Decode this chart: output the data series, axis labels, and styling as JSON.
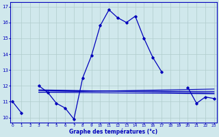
{
  "xlabel": "Graphe des températures (°c)",
  "bg_color": "#d0e8ec",
  "line_color": "#0000bb",
  "grid_color": "#b0cccc",
  "hours": [
    0,
    1,
    2,
    3,
    4,
    5,
    6,
    7,
    8,
    9,
    10,
    11,
    12,
    13,
    14,
    15,
    16,
    17,
    18,
    19,
    20,
    21,
    22,
    23
  ],
  "temp_main": [
    11.0,
    10.3,
    null,
    12.0,
    11.6,
    10.9,
    10.6,
    9.9,
    12.5,
    13.9,
    15.8,
    16.8,
    16.3,
    16.0,
    16.4,
    15.0,
    13.8,
    12.9,
    null,
    null,
    11.9,
    10.9,
    11.3,
    11.2
  ],
  "ref_lines": [
    [
      3,
      11.6,
      23,
      11.8
    ],
    [
      3,
      11.6,
      23,
      11.5
    ],
    [
      3,
      11.7,
      23,
      11.65
    ],
    [
      3,
      11.75,
      23,
      11.55
    ]
  ],
  "ylim": [
    9.7,
    17.3
  ],
  "yticks": [
    10,
    11,
    12,
    13,
    14,
    15,
    16,
    17
  ],
  "xlim": [
    -0.3,
    23.3
  ],
  "xticks": [
    0,
    1,
    2,
    3,
    4,
    5,
    6,
    7,
    8,
    9,
    10,
    11,
    12,
    13,
    14,
    15,
    16,
    17,
    18,
    19,
    20,
    21,
    22,
    23
  ]
}
